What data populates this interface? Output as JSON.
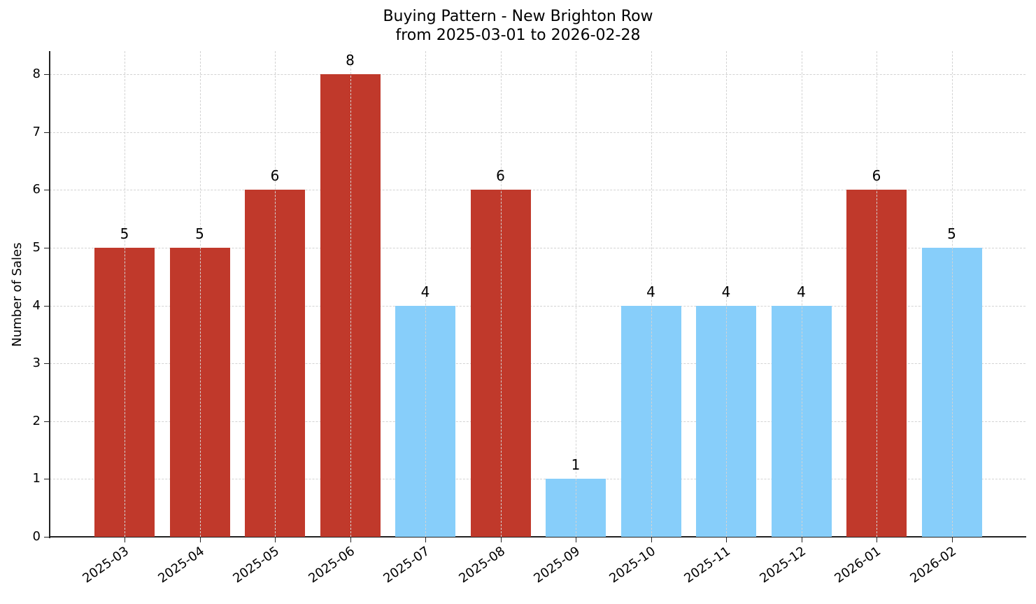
{
  "chart_data": {
    "type": "bar",
    "title": "Buying Pattern - New Brighton Row",
    "subtitle": "from 2025-03-01 to 2026-02-28",
    "xlabel": "",
    "ylabel": "Number of Sales",
    "categories": [
      "2025-03",
      "2025-04",
      "2025-05",
      "2025-06",
      "2025-07",
      "2025-08",
      "2025-09",
      "2025-10",
      "2025-11",
      "2025-12",
      "2026-01",
      "2026-02"
    ],
    "values": [
      5,
      5,
      6,
      8,
      4,
      6,
      1,
      4,
      4,
      4,
      6,
      5
    ],
    "bar_colors": [
      "#c0392b",
      "#c0392b",
      "#c0392b",
      "#c0392b",
      "#87cefa",
      "#c0392b",
      "#87cefa",
      "#87cefa",
      "#87cefa",
      "#87cefa",
      "#c0392b",
      "#87cefa"
    ],
    "data_labels": [
      "5",
      "5",
      "6",
      "8",
      "4",
      "6",
      "1",
      "4",
      "4",
      "4",
      "6",
      "5"
    ],
    "yticks": [
      "0",
      "1",
      "2",
      "3",
      "4",
      "5",
      "6",
      "7",
      "8"
    ],
    "ylim": [
      0,
      8.4
    ],
    "grid": true,
    "legend": null,
    "colors": {
      "high": "#c0392b",
      "low": "#87cefa"
    }
  }
}
